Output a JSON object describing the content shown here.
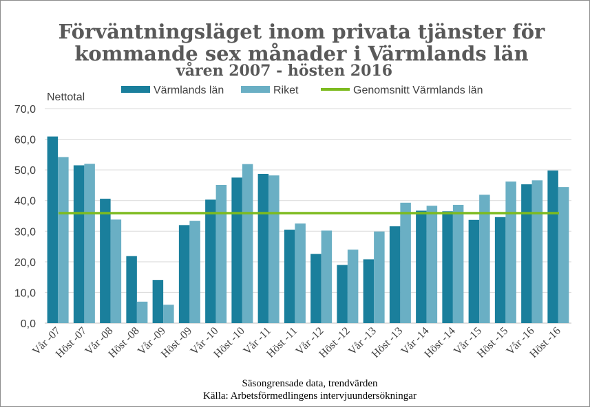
{
  "chart_data": {
    "type": "bar",
    "title_line1": "Förväntningsläget inom privata tjänster för",
    "title_line2": "kommande sex månader i Värmlands län",
    "subtitle": "våren 2007 - hösten 2016",
    "ylabel": "Nettotal",
    "ylim": [
      0,
      70
    ],
    "yticks": [
      "0,0",
      "10,0",
      "20,0",
      "30,0",
      "40,0",
      "50,0",
      "60,0",
      "70,0"
    ],
    "categories": [
      "Vår -07",
      "Höst -07",
      "Vår -08",
      "Höst -08",
      "Vår -09",
      "Höst -09",
      "Vår -10",
      "Höst -10",
      "Vår -11",
      "Höst -11",
      "Vår -12",
      "Höst -12",
      "Vår -13",
      "Höst -13",
      "Vår -14",
      "Höst -14",
      "Vår -15",
      "Höst -15",
      "Vår -16",
      "Höst -16"
    ],
    "series": [
      {
        "name": "Värmlands län",
        "color": "#1a7f9c",
        "values": [
          60.9,
          51.5,
          40.6,
          21.9,
          14.1,
          32.0,
          40.3,
          47.5,
          48.7,
          30.5,
          22.6,
          19.0,
          20.8,
          31.6,
          36.7,
          36.5,
          33.7,
          34.6,
          45.3,
          49.8
        ]
      },
      {
        "name": "Riket",
        "color": "#6aafc4",
        "values": [
          54.2,
          52.0,
          33.8,
          7.0,
          6.0,
          33.4,
          45.1,
          51.9,
          48.2,
          32.5,
          30.2,
          24.0,
          29.9,
          39.3,
          38.3,
          38.6,
          41.9,
          46.2,
          46.6,
          44.4
        ]
      }
    ],
    "reference_line": {
      "name": "Genomsnitt Värmlands län",
      "value": 35.9,
      "color": "#7dbb1f"
    },
    "notes": [
      "Säsongrensade data, trendvärden",
      "Källa: Arbetsförmedlingens intervjuundersökningar"
    ]
  }
}
